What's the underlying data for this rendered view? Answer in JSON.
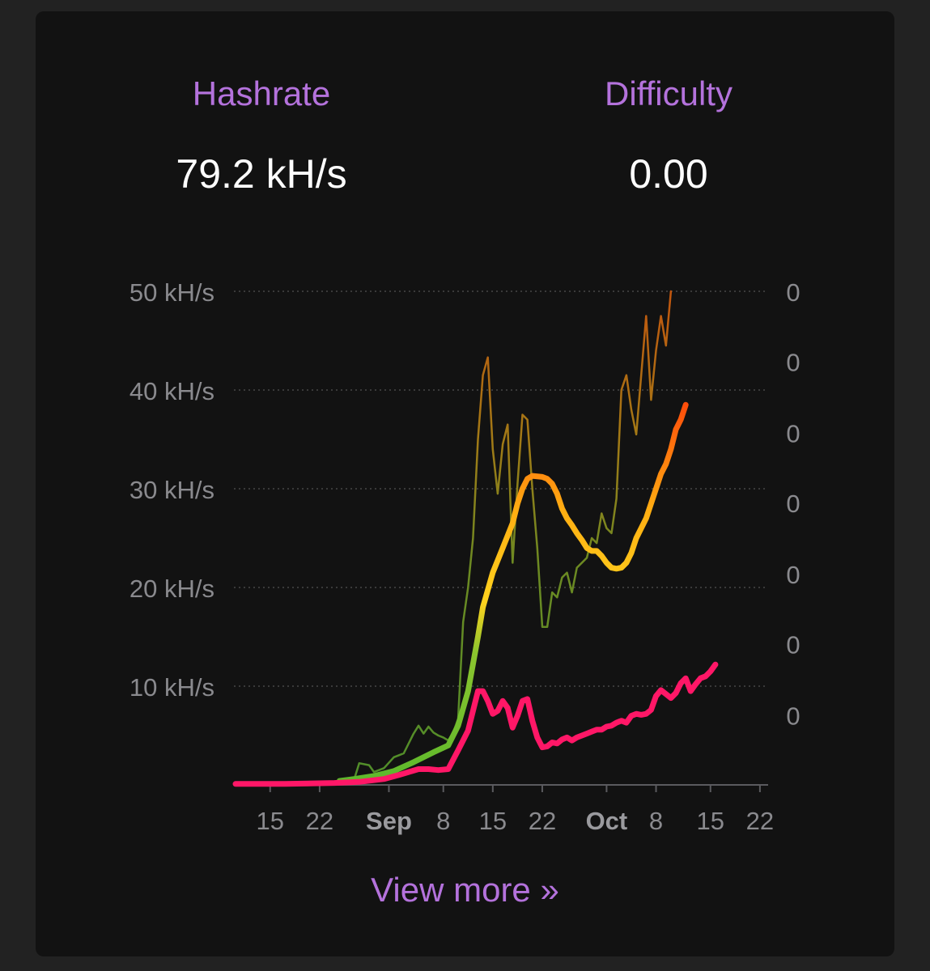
{
  "stats": {
    "hashrate_label": "Hashrate",
    "hashrate_value": "79.2 kH/s",
    "difficulty_label": "Difficulty",
    "difficulty_value": "0.00"
  },
  "view_more_label": "View more »",
  "colors": {
    "label_accent": "#b472dc",
    "pink_series": "#ff1767",
    "gradient_start": "#5cb82c",
    "gradient_mid": "#ffd21e",
    "gradient_end": "#ff4d0a"
  },
  "chart_data": {
    "type": "line",
    "x_range": [
      0,
      107
    ],
    "y_range": [
      0,
      50
    ],
    "left_axis": {
      "tick_values": [
        10,
        20,
        30,
        40,
        50
      ],
      "tick_labels": [
        "10 kH/s",
        "20 kH/s",
        "30 kH/s",
        "40 kH/s",
        "50 kH/s"
      ]
    },
    "right_axis": {
      "tick_values": [
        7.1,
        14.3,
        21.4,
        28.6,
        35.7,
        42.9,
        50
      ],
      "tick_labels": [
        "0",
        "0",
        "0",
        "0",
        "0",
        "0",
        "0"
      ]
    },
    "x_ticks": [
      {
        "x": 7,
        "label": "15",
        "bold": false
      },
      {
        "x": 17,
        "label": "22",
        "bold": false
      },
      {
        "x": 31,
        "label": "Sep",
        "bold": true
      },
      {
        "x": 42,
        "label": "8",
        "bold": false
      },
      {
        "x": 52,
        "label": "15",
        "bold": false
      },
      {
        "x": 62,
        "label": "22",
        "bold": false
      },
      {
        "x": 75,
        "label": "Oct",
        "bold": true
      },
      {
        "x": 85,
        "label": "8",
        "bold": false
      },
      {
        "x": 96,
        "label": "15",
        "bold": false
      },
      {
        "x": 106,
        "label": "22",
        "bold": false
      }
    ],
    "grid": "dotted-horizontal",
    "series": [
      {
        "style": "thin-gradient",
        "points": [
          [
            0,
            0.1
          ],
          [
            5,
            0.1
          ],
          [
            10,
            0.1
          ],
          [
            15,
            0.2
          ],
          [
            20,
            0.3
          ],
          [
            22,
            0.4
          ],
          [
            24,
            0.6
          ],
          [
            25,
            2.2
          ],
          [
            27,
            2
          ],
          [
            28,
            1.3
          ],
          [
            30,
            1.7
          ],
          [
            32,
            2.8
          ],
          [
            33,
            3
          ],
          [
            34,
            3.2
          ],
          [
            36,
            5.2
          ],
          [
            37,
            6
          ],
          [
            38,
            5.2
          ],
          [
            39,
            5.9
          ],
          [
            40,
            5.3
          ],
          [
            41,
            5
          ],
          [
            42,
            4.8
          ],
          [
            43,
            4.5
          ],
          [
            44,
            5.3
          ],
          [
            45,
            6.7
          ],
          [
            46,
            16.5
          ],
          [
            47,
            20
          ],
          [
            48,
            25
          ],
          [
            49,
            35
          ],
          [
            50,
            41.5
          ],
          [
            51,
            43.3
          ],
          [
            52,
            34
          ],
          [
            53,
            29.5
          ],
          [
            54,
            34.5
          ],
          [
            55,
            36.5
          ],
          [
            56,
            22.5
          ],
          [
            57,
            30.5
          ],
          [
            58,
            37.5
          ],
          [
            59,
            37
          ],
          [
            60,
            30
          ],
          [
            61,
            24
          ],
          [
            62,
            16
          ],
          [
            63,
            16
          ],
          [
            64,
            19.5
          ],
          [
            65,
            19
          ],
          [
            66,
            21
          ],
          [
            67,
            21.5
          ],
          [
            68,
            19.5
          ],
          [
            69,
            22
          ],
          [
            70,
            22.5
          ],
          [
            71,
            23
          ],
          [
            72,
            25
          ],
          [
            73,
            24.5
          ],
          [
            74,
            27.5
          ],
          [
            75,
            26
          ],
          [
            76,
            25.5
          ],
          [
            77,
            29
          ],
          [
            78,
            40
          ],
          [
            79,
            41.5
          ],
          [
            80,
            38
          ],
          [
            81,
            35.5
          ],
          [
            82,
            41.5
          ],
          [
            83,
            47.5
          ],
          [
            84,
            39
          ],
          [
            85,
            44
          ],
          [
            86,
            47.5
          ],
          [
            87,
            44.5
          ],
          [
            88,
            50
          ]
        ]
      },
      {
        "style": "thick-gradient",
        "points": [
          [
            21,
            0.4
          ],
          [
            24,
            0.6
          ],
          [
            28,
            0.9
          ],
          [
            32,
            1.4
          ],
          [
            36,
            2.3
          ],
          [
            40,
            3.3
          ],
          [
            43,
            4
          ],
          [
            45,
            6
          ],
          [
            47,
            9.5
          ],
          [
            49,
            15
          ],
          [
            50,
            18
          ],
          [
            52,
            21.5
          ],
          [
            54,
            24
          ],
          [
            56,
            26.5
          ],
          [
            57,
            28.5
          ],
          [
            58,
            30
          ],
          [
            59,
            31
          ],
          [
            60,
            31.3
          ],
          [
            62,
            31.2
          ],
          [
            63,
            31
          ],
          [
            64,
            30.5
          ],
          [
            65,
            29.5
          ],
          [
            66,
            28
          ],
          [
            67,
            27
          ],
          [
            68,
            26.3
          ],
          [
            69,
            25.5
          ],
          [
            70,
            24.8
          ],
          [
            71,
            24
          ],
          [
            72,
            23.7
          ],
          [
            73,
            23.7
          ],
          [
            74,
            23.2
          ],
          [
            75,
            22.5
          ],
          [
            76,
            22
          ],
          [
            77,
            21.9
          ],
          [
            78,
            22
          ],
          [
            79,
            22.5
          ],
          [
            80,
            23.5
          ],
          [
            81,
            25
          ],
          [
            82,
            26
          ],
          [
            83,
            27
          ],
          [
            84,
            28.5
          ],
          [
            85,
            30
          ],
          [
            86,
            31.5
          ],
          [
            87,
            32.5
          ],
          [
            88,
            34
          ],
          [
            89,
            36
          ],
          [
            90,
            37
          ],
          [
            91,
            38.5
          ]
        ]
      },
      {
        "style": "pink",
        "points": [
          [
            0,
            0.1
          ],
          [
            10,
            0.1
          ],
          [
            20,
            0.2
          ],
          [
            25,
            0.3
          ],
          [
            30,
            0.6
          ],
          [
            33,
            1
          ],
          [
            35,
            1.3
          ],
          [
            37,
            1.6
          ],
          [
            39,
            1.6
          ],
          [
            41,
            1.5
          ],
          [
            43,
            1.6
          ],
          [
            45,
            3.5
          ],
          [
            47,
            5.5
          ],
          [
            48,
            7.5
          ],
          [
            49,
            9.5
          ],
          [
            50,
            9.5
          ],
          [
            51,
            8.5
          ],
          [
            52,
            7.2
          ],
          [
            53,
            7.5
          ],
          [
            54,
            8.5
          ],
          [
            55,
            7.8
          ],
          [
            56,
            5.8
          ],
          [
            57,
            7
          ],
          [
            58,
            8.5
          ],
          [
            59,
            8.7
          ],
          [
            60,
            6.5
          ],
          [
            61,
            4.8
          ],
          [
            62,
            3.8
          ],
          [
            63,
            3.9
          ],
          [
            64,
            4.3
          ],
          [
            65,
            4.2
          ],
          [
            66,
            4.6
          ],
          [
            67,
            4.8
          ],
          [
            68,
            4.5
          ],
          [
            69,
            4.8
          ],
          [
            70,
            5
          ],
          [
            71,
            5.2
          ],
          [
            72,
            5.4
          ],
          [
            73,
            5.6
          ],
          [
            74,
            5.6
          ],
          [
            75,
            5.9
          ],
          [
            76,
            6
          ],
          [
            77,
            6.3
          ],
          [
            78,
            6.5
          ],
          [
            79,
            6.3
          ],
          [
            80,
            7
          ],
          [
            81,
            7.2
          ],
          [
            82,
            7.1
          ],
          [
            83,
            7.2
          ],
          [
            84,
            7.6
          ],
          [
            85,
            9
          ],
          [
            86,
            9.6
          ],
          [
            87,
            9.2
          ],
          [
            88,
            8.8
          ],
          [
            89,
            9.3
          ],
          [
            90,
            10.3
          ],
          [
            91,
            10.8
          ],
          [
            92,
            9.5
          ],
          [
            93,
            10.2
          ],
          [
            94,
            10.8
          ],
          [
            95,
            11
          ],
          [
            96,
            11.5
          ],
          [
            97,
            12.2
          ]
        ]
      }
    ]
  }
}
